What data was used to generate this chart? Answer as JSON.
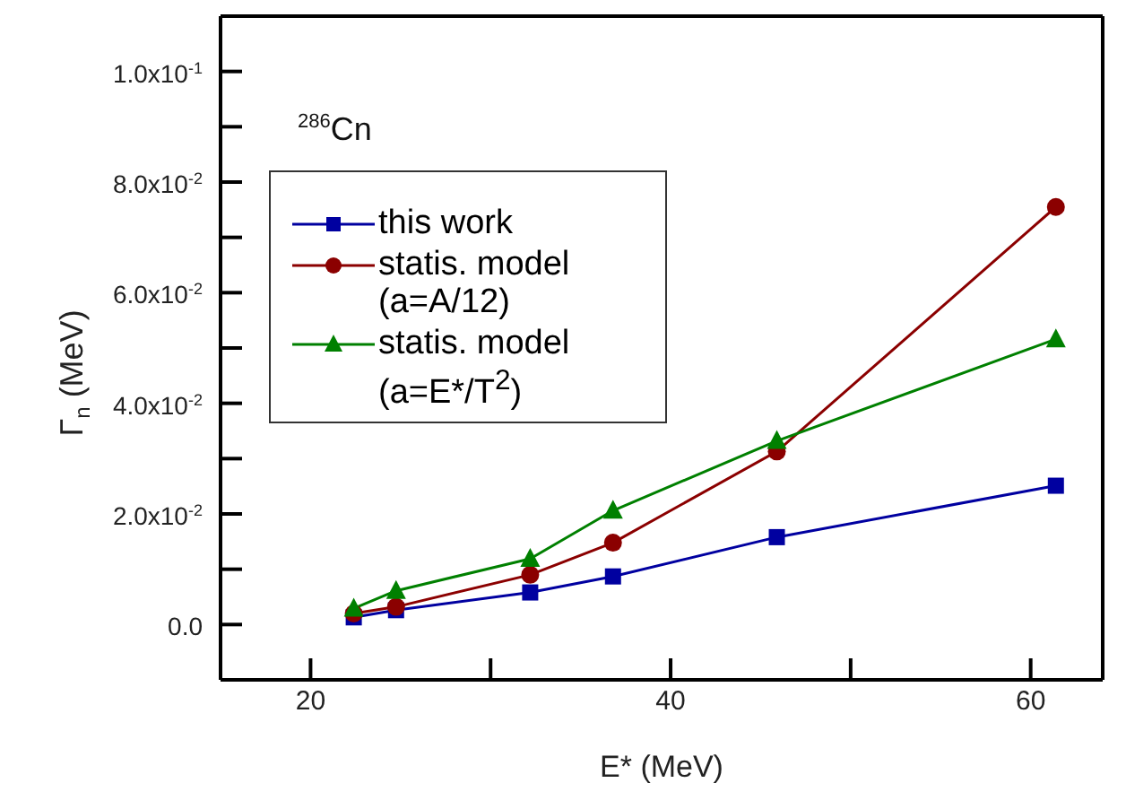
{
  "chart_data": {
    "type": "line",
    "xlabel": "E* (MeV)",
    "ylabel": "Γ$_{n}$ (MeV)",
    "annotations": [
      "$^{286}$Cn"
    ],
    "x": [
      22.4,
      24.75,
      32.2,
      36.8,
      45.9,
      61.4
    ],
    "series": [
      {
        "name": "this work",
        "color": "#0000a0",
        "marker": "square",
        "values": [
          0.0013,
          0.0026,
          0.0058,
          0.0087,
          0.0158,
          0.0251
        ]
      },
      {
        "name": "statis. model (a=A/12)",
        "color": "#8b0000",
        "marker": "circle",
        "values": [
          0.002,
          0.0032,
          0.009,
          0.0148,
          0.0313,
          0.0755
        ]
      },
      {
        "name": "statis. model (a=E*/T$^{2}$)",
        "color": "#008000",
        "marker": "triangle",
        "values": [
          0.0029,
          0.0061,
          0.0119,
          0.0206,
          0.0332,
          0.0516
        ]
      }
    ],
    "xlim": [
      15,
      64
    ],
    "xticks": [
      20,
      {
        "value": 30,
        "label": null
      },
      40,
      {
        "value": 50,
        "label": null
      },
      60
    ],
    "ylim": [
      -0.01,
      0.11
    ],
    "yticks": [
      {
        "value": -0.01,
        "label": null
      },
      {
        "value": 0,
        "label": "0.0"
      },
      {
        "value": 0.01,
        "label": null
      },
      {
        "value": 0.02,
        "label": "2.0x10$^{-2}$"
      },
      {
        "value": 0.03,
        "label": null
      },
      {
        "value": 0.04,
        "label": "4.0x10$^{-2}$"
      },
      {
        "value": 0.05,
        "label": null
      },
      {
        "value": 0.06,
        "label": "6.0x10$^{-2}$"
      },
      {
        "value": 0.07,
        "label": null
      },
      {
        "value": 0.08,
        "label": "8.0x10$^{-2}$"
      },
      {
        "value": 0.09,
        "label": null
      },
      {
        "value": 0.1,
        "label": "1.0x10$^{-1}$"
      }
    ],
    "grid": false,
    "legend": "top left",
    "line_style": "solid"
  }
}
